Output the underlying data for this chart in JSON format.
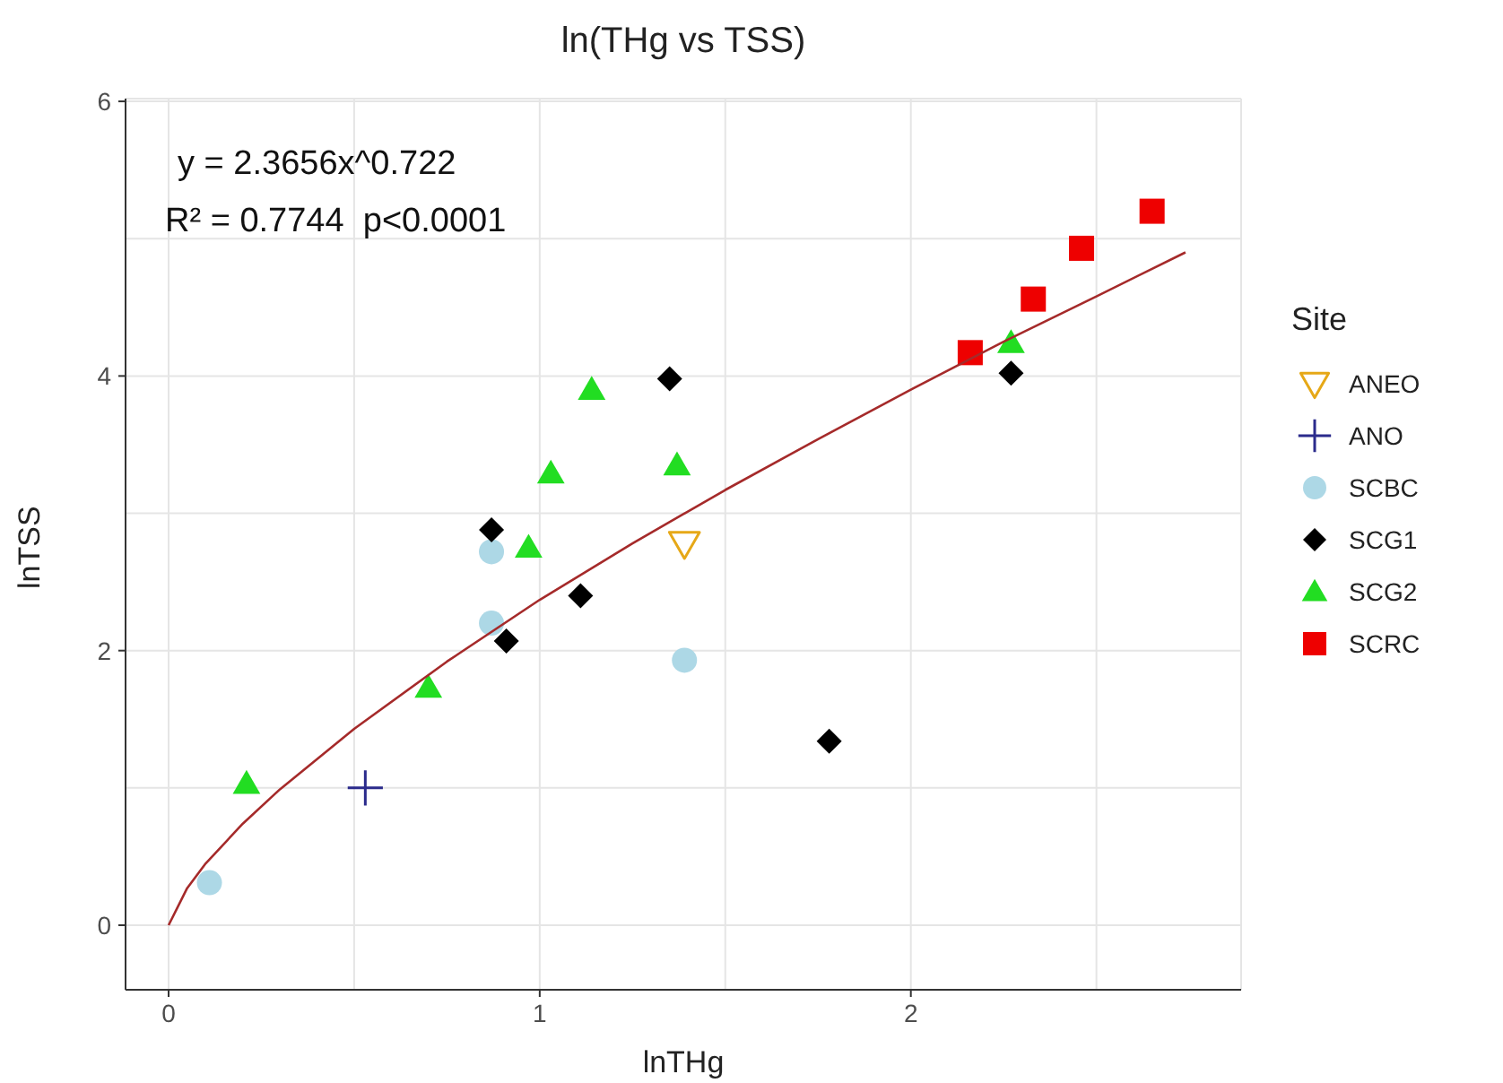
{
  "chart_data": {
    "type": "scatter",
    "title": "ln(THg vs TSS)",
    "xlabel": "lnTHg",
    "ylabel": "lnTSS",
    "legend_title": "Site",
    "legend": "right",
    "grid": true,
    "annotations": [
      "y = 2.3656x^0.722",
      "R² = 0.7744  p<0.0001"
    ],
    "xlim": [
      -0.116,
      2.89
    ],
    "xticks": [
      0,
      {
        "value": 0.5,
        "label": null
      },
      1,
      {
        "value": 1.5,
        "label": null
      },
      2,
      {
        "value": 2.5,
        "label": null
      }
    ],
    "ylim": [
      -0.47,
      6.02
    ],
    "yticks": [
      0,
      {
        "value": 1,
        "label": null
      },
      2,
      {
        "value": 3,
        "label": null
      },
      4,
      {
        "value": 5,
        "label": null
      },
      6
    ],
    "series": [
      {
        "name": "ANEO",
        "color": "#e6a817",
        "marker": "triangle-down",
        "x": [
          1.39
        ],
        "values": [
          2.78
        ]
      },
      {
        "name": "ANO",
        "color": "#2b2b8c",
        "marker": "cross",
        "x": [
          0.53
        ],
        "values": [
          1.0
        ]
      },
      {
        "name": "SCBC",
        "color": "#add8e6",
        "marker": "circle",
        "x": [
          0.11,
          0.87,
          0.87,
          1.39
        ],
        "values": [
          0.31,
          2.72,
          2.2,
          1.93
        ]
      },
      {
        "name": "SCG1",
        "color": "#000000",
        "marker": "diamond",
        "x": [
          1.35,
          0.87,
          0.91,
          1.11,
          1.78,
          2.27
        ],
        "values": [
          3.98,
          2.88,
          2.07,
          2.4,
          1.34,
          4.02
        ]
      },
      {
        "name": "SCG2",
        "color": "#22dd22",
        "marker": "triangle",
        "x": [
          0.21,
          0.7,
          0.97,
          1.03,
          1.14,
          1.37,
          2.27
        ],
        "values": [
          1.03,
          1.73,
          2.75,
          3.29,
          3.9,
          3.35,
          4.24
        ]
      },
      {
        "name": "SCRC",
        "color": "#ee0000",
        "marker": "square",
        "x": [
          2.16,
          2.33,
          2.46,
          2.65
        ],
        "values": [
          4.17,
          4.56,
          4.93,
          5.2
        ]
      },
      {
        "type": "line",
        "color": "#a52a2a",
        "marker": "none",
        "x": [
          0,
          0.05,
          0.1,
          0.2,
          0.3,
          0.5,
          0.75,
          1,
          1.25,
          1.5,
          1.75,
          2,
          2.25,
          2.5,
          2.74
        ],
        "values": [
          0,
          0.27,
          0.45,
          0.74,
          0.99,
          1.43,
          1.92,
          2.37,
          2.78,
          3.17,
          3.54,
          3.9,
          4.25,
          4.58,
          4.9
        ]
      }
    ]
  }
}
